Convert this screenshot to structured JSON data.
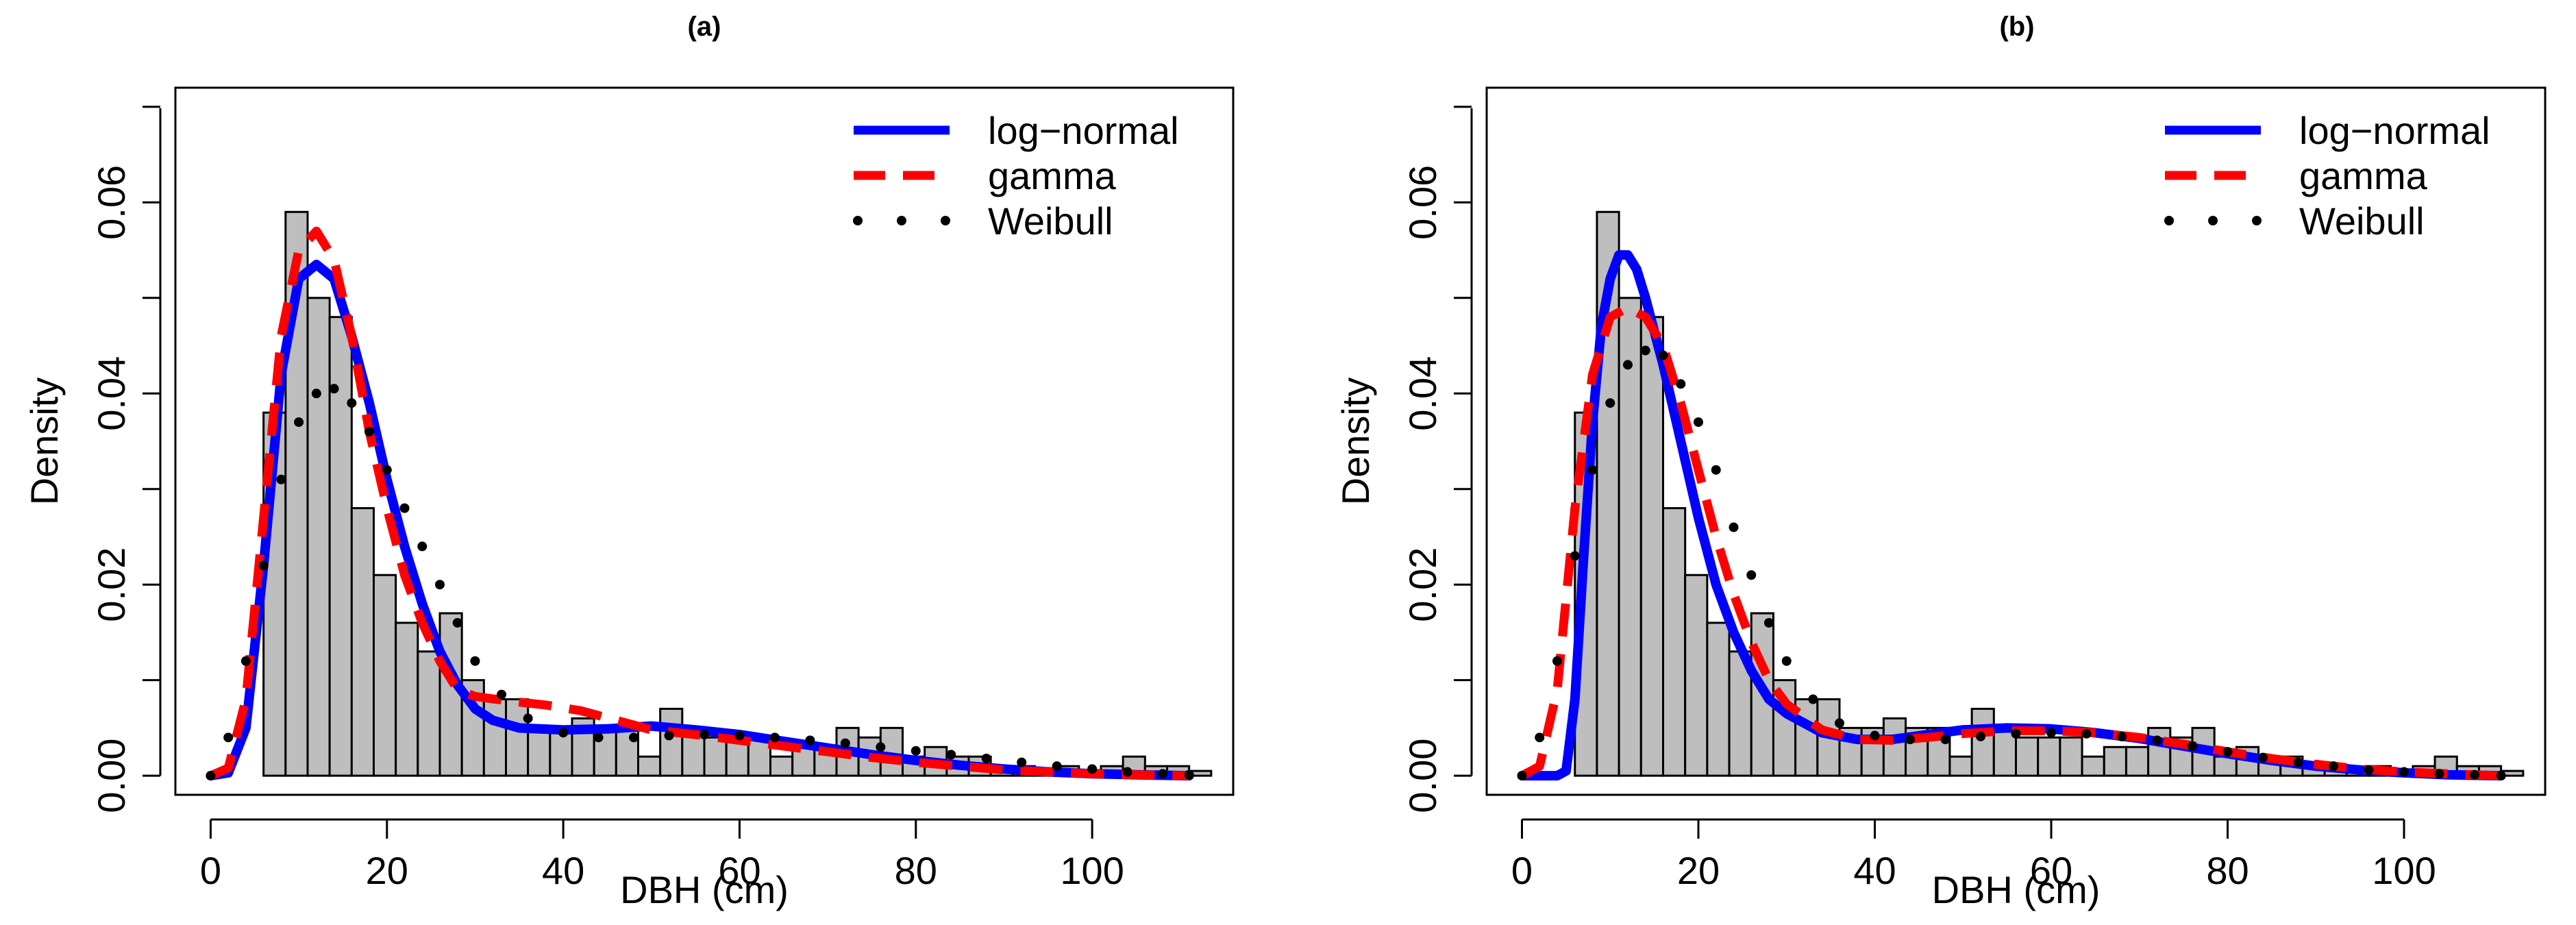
{
  "chart_data": [
    {
      "type": "histogram",
      "title": "(a)",
      "xlabel": "DBH (cm)",
      "ylabel": "Density",
      "xlim": [
        -4,
        116
      ],
      "ylim": [
        -0.002,
        0.072
      ],
      "xticks": [
        0,
        20,
        40,
        60,
        80,
        100
      ],
      "yticks": [
        0.0,
        0.02,
        0.04,
        0.06
      ],
      "xtick_labels": [
        "0",
        "20",
        "40",
        "60",
        "80",
        "100"
      ],
      "ytick_labels": [
        "0.00",
        "0.02",
        "0.04",
        "0.06"
      ],
      "legend": [
        {
          "label": "log−normal",
          "color": "#0000ff",
          "style": "solid"
        },
        {
          "label": "gamma",
          "color": "#ff0000",
          "style": "dashed"
        },
        {
          "label": "Weibull",
          "color": "#000000",
          "style": "dotted"
        }
      ],
      "histogram": {
        "bin_width": 2.5,
        "bin_start": 6,
        "fill": "#bebebe",
        "values": [
          0.038,
          0.059,
          0.05,
          0.048,
          0.028,
          0.021,
          0.016,
          0.013,
          0.017,
          0.01,
          0.008,
          0.008,
          0.005,
          0.005,
          0.006,
          0.005,
          0.005,
          0.002,
          0.007,
          0.005,
          0.004,
          0.004,
          0.004,
          0.002,
          0.003,
          0.003,
          0.005,
          0.004,
          0.005,
          0.002,
          0.003,
          0.002,
          0.002,
          0.001,
          0.001,
          0.0005,
          0.001,
          0.0005,
          0.001,
          0.002,
          0.001,
          0.001,
          0.0005
        ]
      },
      "series": [
        {
          "name": "log−normal",
          "color": "#0000ff",
          "style": "solid",
          "x": [
            0,
            2,
            4,
            6,
            8,
            10,
            12,
            14,
            16,
            18,
            20,
            22,
            24,
            26,
            28,
            30,
            32,
            35,
            40,
            45,
            50,
            55,
            60,
            65,
            70,
            75,
            80,
            85,
            90,
            95,
            100,
            105,
            111
          ],
          "y": [
            0.0,
            0.0003,
            0.005,
            0.022,
            0.042,
            0.052,
            0.0535,
            0.052,
            0.046,
            0.039,
            0.031,
            0.024,
            0.018,
            0.013,
            0.0095,
            0.007,
            0.0058,
            0.005,
            0.0048,
            0.0049,
            0.0052,
            0.0048,
            0.0043,
            0.0036,
            0.0029,
            0.0022,
            0.0016,
            0.0011,
            0.0007,
            0.0004,
            0.0002,
            0.0001,
            0.0
          ]
        },
        {
          "name": "gamma",
          "color": "#ff0000",
          "style": "dashed",
          "x": [
            0,
            2,
            4,
            6,
            8,
            10,
            12,
            14,
            16,
            18,
            20,
            22,
            24,
            26,
            28,
            30,
            34,
            38,
            42,
            46,
            50,
            55,
            60,
            65,
            70,
            75,
            80,
            85,
            90,
            95,
            100,
            105,
            111
          ],
          "y": [
            0.0,
            0.0008,
            0.008,
            0.027,
            0.046,
            0.055,
            0.057,
            0.054,
            0.046,
            0.036,
            0.028,
            0.021,
            0.016,
            0.012,
            0.009,
            0.0083,
            0.0078,
            0.0074,
            0.0068,
            0.0058,
            0.0048,
            0.0043,
            0.0037,
            0.0031,
            0.0025,
            0.0019,
            0.0014,
            0.001,
            0.0006,
            0.0004,
            0.0002,
            0.0001,
            0.0
          ]
        },
        {
          "name": "Weibull",
          "color": "#000000",
          "style": "dotted",
          "x": [
            0,
            2,
            4,
            6,
            8,
            10,
            12,
            14,
            16,
            18,
            20,
            22,
            24,
            26,
            28,
            30,
            33,
            36,
            40,
            44,
            48,
            52,
            56,
            60,
            64,
            68,
            72,
            76,
            80,
            84,
            88,
            92,
            96,
            100,
            104,
            108,
            111
          ],
          "y": [
            0.0,
            0.004,
            0.012,
            0.022,
            0.031,
            0.037,
            0.04,
            0.0405,
            0.039,
            0.036,
            0.032,
            0.028,
            0.024,
            0.02,
            0.016,
            0.012,
            0.0085,
            0.006,
            0.0045,
            0.004,
            0.004,
            0.0042,
            0.0043,
            0.0042,
            0.004,
            0.0037,
            0.0034,
            0.003,
            0.0026,
            0.0022,
            0.0018,
            0.0014,
            0.001,
            0.0007,
            0.0004,
            0.0002,
            0.0001
          ]
        }
      ]
    },
    {
      "type": "histogram",
      "title": "(b)",
      "xlabel": "DBH (cm)",
      "ylabel": "Density",
      "xlim": [
        -4,
        116
      ],
      "ylim": [
        -0.002,
        0.072
      ],
      "xticks": [
        0,
        20,
        40,
        60,
        80,
        100
      ],
      "yticks": [
        0.0,
        0.02,
        0.04,
        0.06
      ],
      "xtick_labels": [
        "0",
        "20",
        "40",
        "60",
        "80",
        "100"
      ],
      "ytick_labels": [
        "0.00",
        "0.02",
        "0.04",
        "0.06"
      ],
      "legend": [
        {
          "label": "log−normal",
          "color": "#0000ff",
          "style": "solid"
        },
        {
          "label": "gamma",
          "color": "#ff0000",
          "style": "dashed"
        },
        {
          "label": "Weibull",
          "color": "#000000",
          "style": "dotted"
        }
      ],
      "histogram": {
        "bin_width": 2.5,
        "bin_start": 6,
        "fill": "#bebebe",
        "values": [
          0.038,
          0.059,
          0.05,
          0.048,
          0.028,
          0.021,
          0.016,
          0.013,
          0.017,
          0.01,
          0.008,
          0.008,
          0.005,
          0.005,
          0.006,
          0.005,
          0.005,
          0.002,
          0.007,
          0.005,
          0.004,
          0.004,
          0.004,
          0.002,
          0.003,
          0.003,
          0.005,
          0.004,
          0.005,
          0.002,
          0.003,
          0.002,
          0.002,
          0.001,
          0.001,
          0.0005,
          0.001,
          0.0005,
          0.001,
          0.002,
          0.001,
          0.001,
          0.0005
        ]
      },
      "series": [
        {
          "name": "log−normal",
          "color": "#0000ff",
          "style": "solid",
          "x": [
            0,
            4,
            5,
            6,
            7,
            8,
            9,
            10,
            11,
            12,
            13,
            14,
            16,
            18,
            20,
            22,
            24,
            26,
            28,
            30,
            34,
            38,
            42,
            46,
            50,
            55,
            60,
            65,
            70,
            75,
            80,
            85,
            90,
            95,
            100,
            105,
            111
          ],
          "y": [
            0.0,
            0.0,
            0.0005,
            0.008,
            0.023,
            0.037,
            0.047,
            0.052,
            0.0545,
            0.0545,
            0.053,
            0.05,
            0.043,
            0.035,
            0.027,
            0.02,
            0.015,
            0.011,
            0.008,
            0.0065,
            0.0045,
            0.0038,
            0.0038,
            0.0043,
            0.0048,
            0.005,
            0.0049,
            0.0045,
            0.0039,
            0.0031,
            0.0023,
            0.0016,
            0.001,
            0.0006,
            0.0003,
            0.0001,
            0.0
          ]
        },
        {
          "name": "gamma",
          "color": "#ff0000",
          "style": "dashed",
          "x": [
            0,
            2,
            4,
            6,
            8,
            10,
            12,
            14,
            16,
            18,
            20,
            22,
            24,
            26,
            28,
            30,
            34,
            38,
            42,
            46,
            50,
            55,
            60,
            65,
            70,
            75,
            80,
            85,
            90,
            95,
            100,
            105,
            111
          ],
          "y": [
            0.0,
            0.001,
            0.009,
            0.028,
            0.042,
            0.048,
            0.049,
            0.048,
            0.045,
            0.039,
            0.032,
            0.025,
            0.019,
            0.014,
            0.01,
            0.0075,
            0.0048,
            0.0038,
            0.0037,
            0.004,
            0.0044,
            0.0047,
            0.0047,
            0.0045,
            0.004,
            0.0033,
            0.0025,
            0.0018,
            0.0012,
            0.0007,
            0.0004,
            0.0002,
            0.0
          ]
        },
        {
          "name": "Weibull",
          "color": "#000000",
          "style": "dotted",
          "x": [
            0,
            2,
            4,
            6,
            8,
            10,
            12,
            14,
            16,
            18,
            20,
            22,
            24,
            26,
            28,
            30,
            33,
            36,
            40,
            44,
            48,
            52,
            56,
            60,
            64,
            68,
            72,
            76,
            80,
            84,
            88,
            92,
            96,
            100,
            104,
            108,
            111
          ],
          "y": [
            0.0,
            0.004,
            0.012,
            0.023,
            0.032,
            0.039,
            0.043,
            0.0445,
            0.044,
            0.041,
            0.037,
            0.032,
            0.026,
            0.021,
            0.016,
            0.012,
            0.008,
            0.0055,
            0.0042,
            0.0038,
            0.0038,
            0.0041,
            0.0044,
            0.0045,
            0.0044,
            0.0041,
            0.0037,
            0.0031,
            0.0025,
            0.0019,
            0.0014,
            0.001,
            0.0006,
            0.0004,
            0.0002,
            0.0001,
            0.0
          ]
        }
      ]
    }
  ]
}
